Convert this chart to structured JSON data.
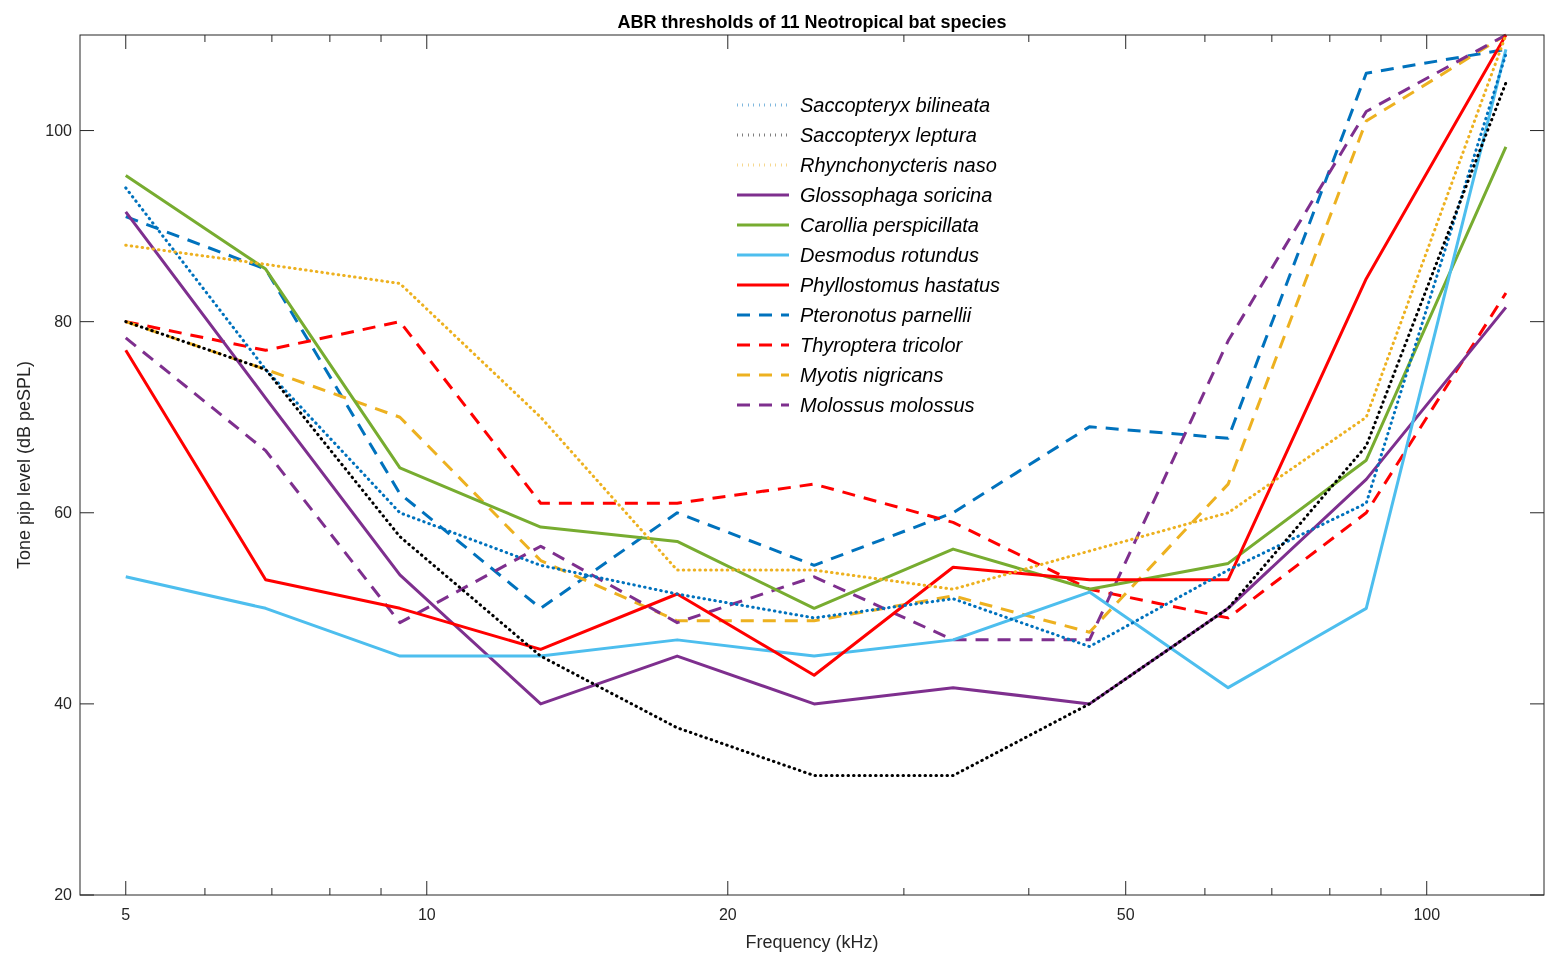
{
  "chart_data": {
    "type": "line",
    "title": "ABR thresholds of 11 Neotropical bat species",
    "xlabel": "Frequency (kHz)",
    "ylabel": "Tone pip level (dB peSPL)",
    "log": "x",
    "x": [
      5,
      6.9,
      9.4,
      13,
      17.8,
      24.4,
      33.6,
      46,
      63.3,
      87,
      120
    ],
    "xlim": [
      4.5,
      131
    ],
    "xticks": [
      5,
      {
        "value": 6,
        "label": null
      },
      {
        "value": 7,
        "label": null
      },
      {
        "value": 8,
        "label": null
      },
      {
        "value": 9,
        "label": null
      },
      10,
      20,
      {
        "value": 30,
        "label": null
      },
      {
        "value": 40,
        "label": null
      },
      50,
      {
        "value": 60,
        "label": null
      },
      {
        "value": 70,
        "label": null
      },
      {
        "value": 80,
        "label": null
      },
      {
        "value": 90,
        "label": null
      },
      100
    ],
    "ylim": [
      20,
      110
    ],
    "yticks": [
      20,
      40,
      60,
      80,
      100
    ],
    "grid": false,
    "legend": "top",
    "series": [
      {
        "name": "Saccopteryx bilineata",
        "color": "#0072bd",
        "line_style": "dotted",
        "values": [
          94,
          75,
          60,
          54.5,
          51.5,
          49,
          51,
          46,
          54,
          61,
          108
        ]
      },
      {
        "name": "Saccopteryx leptura",
        "color": "#000000",
        "line_style": "dotted",
        "values": [
          80,
          75,
          57.5,
          45,
          37.5,
          32.5,
          32.5,
          40,
          50,
          67,
          105
        ]
      },
      {
        "name": "Rhynchonycteris naso",
        "color": "#edb120",
        "line_style": "dotted",
        "values": [
          88,
          86,
          84,
          70,
          54,
          54,
          52,
          56,
          60,
          70,
          110
        ]
      },
      {
        "name": "Glossophaga soricina",
        "color": "#7e2f8e",
        "line_style": "solid",
        "values": [
          91.5,
          72,
          53.5,
          40,
          45,
          40,
          41.7,
          40,
          50,
          63.5,
          81.5
        ]
      },
      {
        "name": "Carollia perspicillata",
        "color": "#77ac30",
        "line_style": "solid",
        "values": [
          95.3,
          85.5,
          64.7,
          58.5,
          57,
          50,
          56.2,
          52,
          54.7,
          65.5,
          98.3
        ]
      },
      {
        "name": "Desmodus rotundus",
        "color": "#4dbeee",
        "line_style": "solid",
        "values": [
          53.3,
          50,
          45,
          45,
          46.7,
          45,
          46.7,
          51.7,
          41.7,
          50,
          108.5
        ]
      },
      {
        "name": "Phyllostomus hastatus",
        "color": "#ff0000",
        "line_style": "solid",
        "values": [
          77,
          53,
          50,
          45.7,
          51.5,
          43,
          54.3,
          53,
          53,
          84.5,
          110
        ]
      },
      {
        "name": "Pteronotus parnellii",
        "color": "#0072bd",
        "line_style": "dashed",
        "values": [
          91,
          85.5,
          62,
          50,
          60,
          54.5,
          60,
          69,
          67.8,
          106,
          108.5
        ]
      },
      {
        "name": "Thyroptera tricolor",
        "color": "#ff0000",
        "line_style": "dashed",
        "values": [
          80,
          77,
          80,
          61,
          61,
          63,
          59,
          52,
          49,
          60,
          83
        ]
      },
      {
        "name": "Myotis nigricans",
        "color": "#edb120",
        "line_style": "dashed",
        "values": [
          80,
          75,
          70,
          55,
          48.7,
          48.7,
          51.3,
          47.5,
          63,
          101,
          110
        ]
      },
      {
        "name": "Molossus molossus",
        "color": "#7e2f8e",
        "line_style": "dashed",
        "values": [
          78.3,
          66.5,
          48.5,
          56.5,
          48.5,
          53.3,
          46.7,
          46.7,
          78,
          102,
          110
        ]
      }
    ]
  }
}
